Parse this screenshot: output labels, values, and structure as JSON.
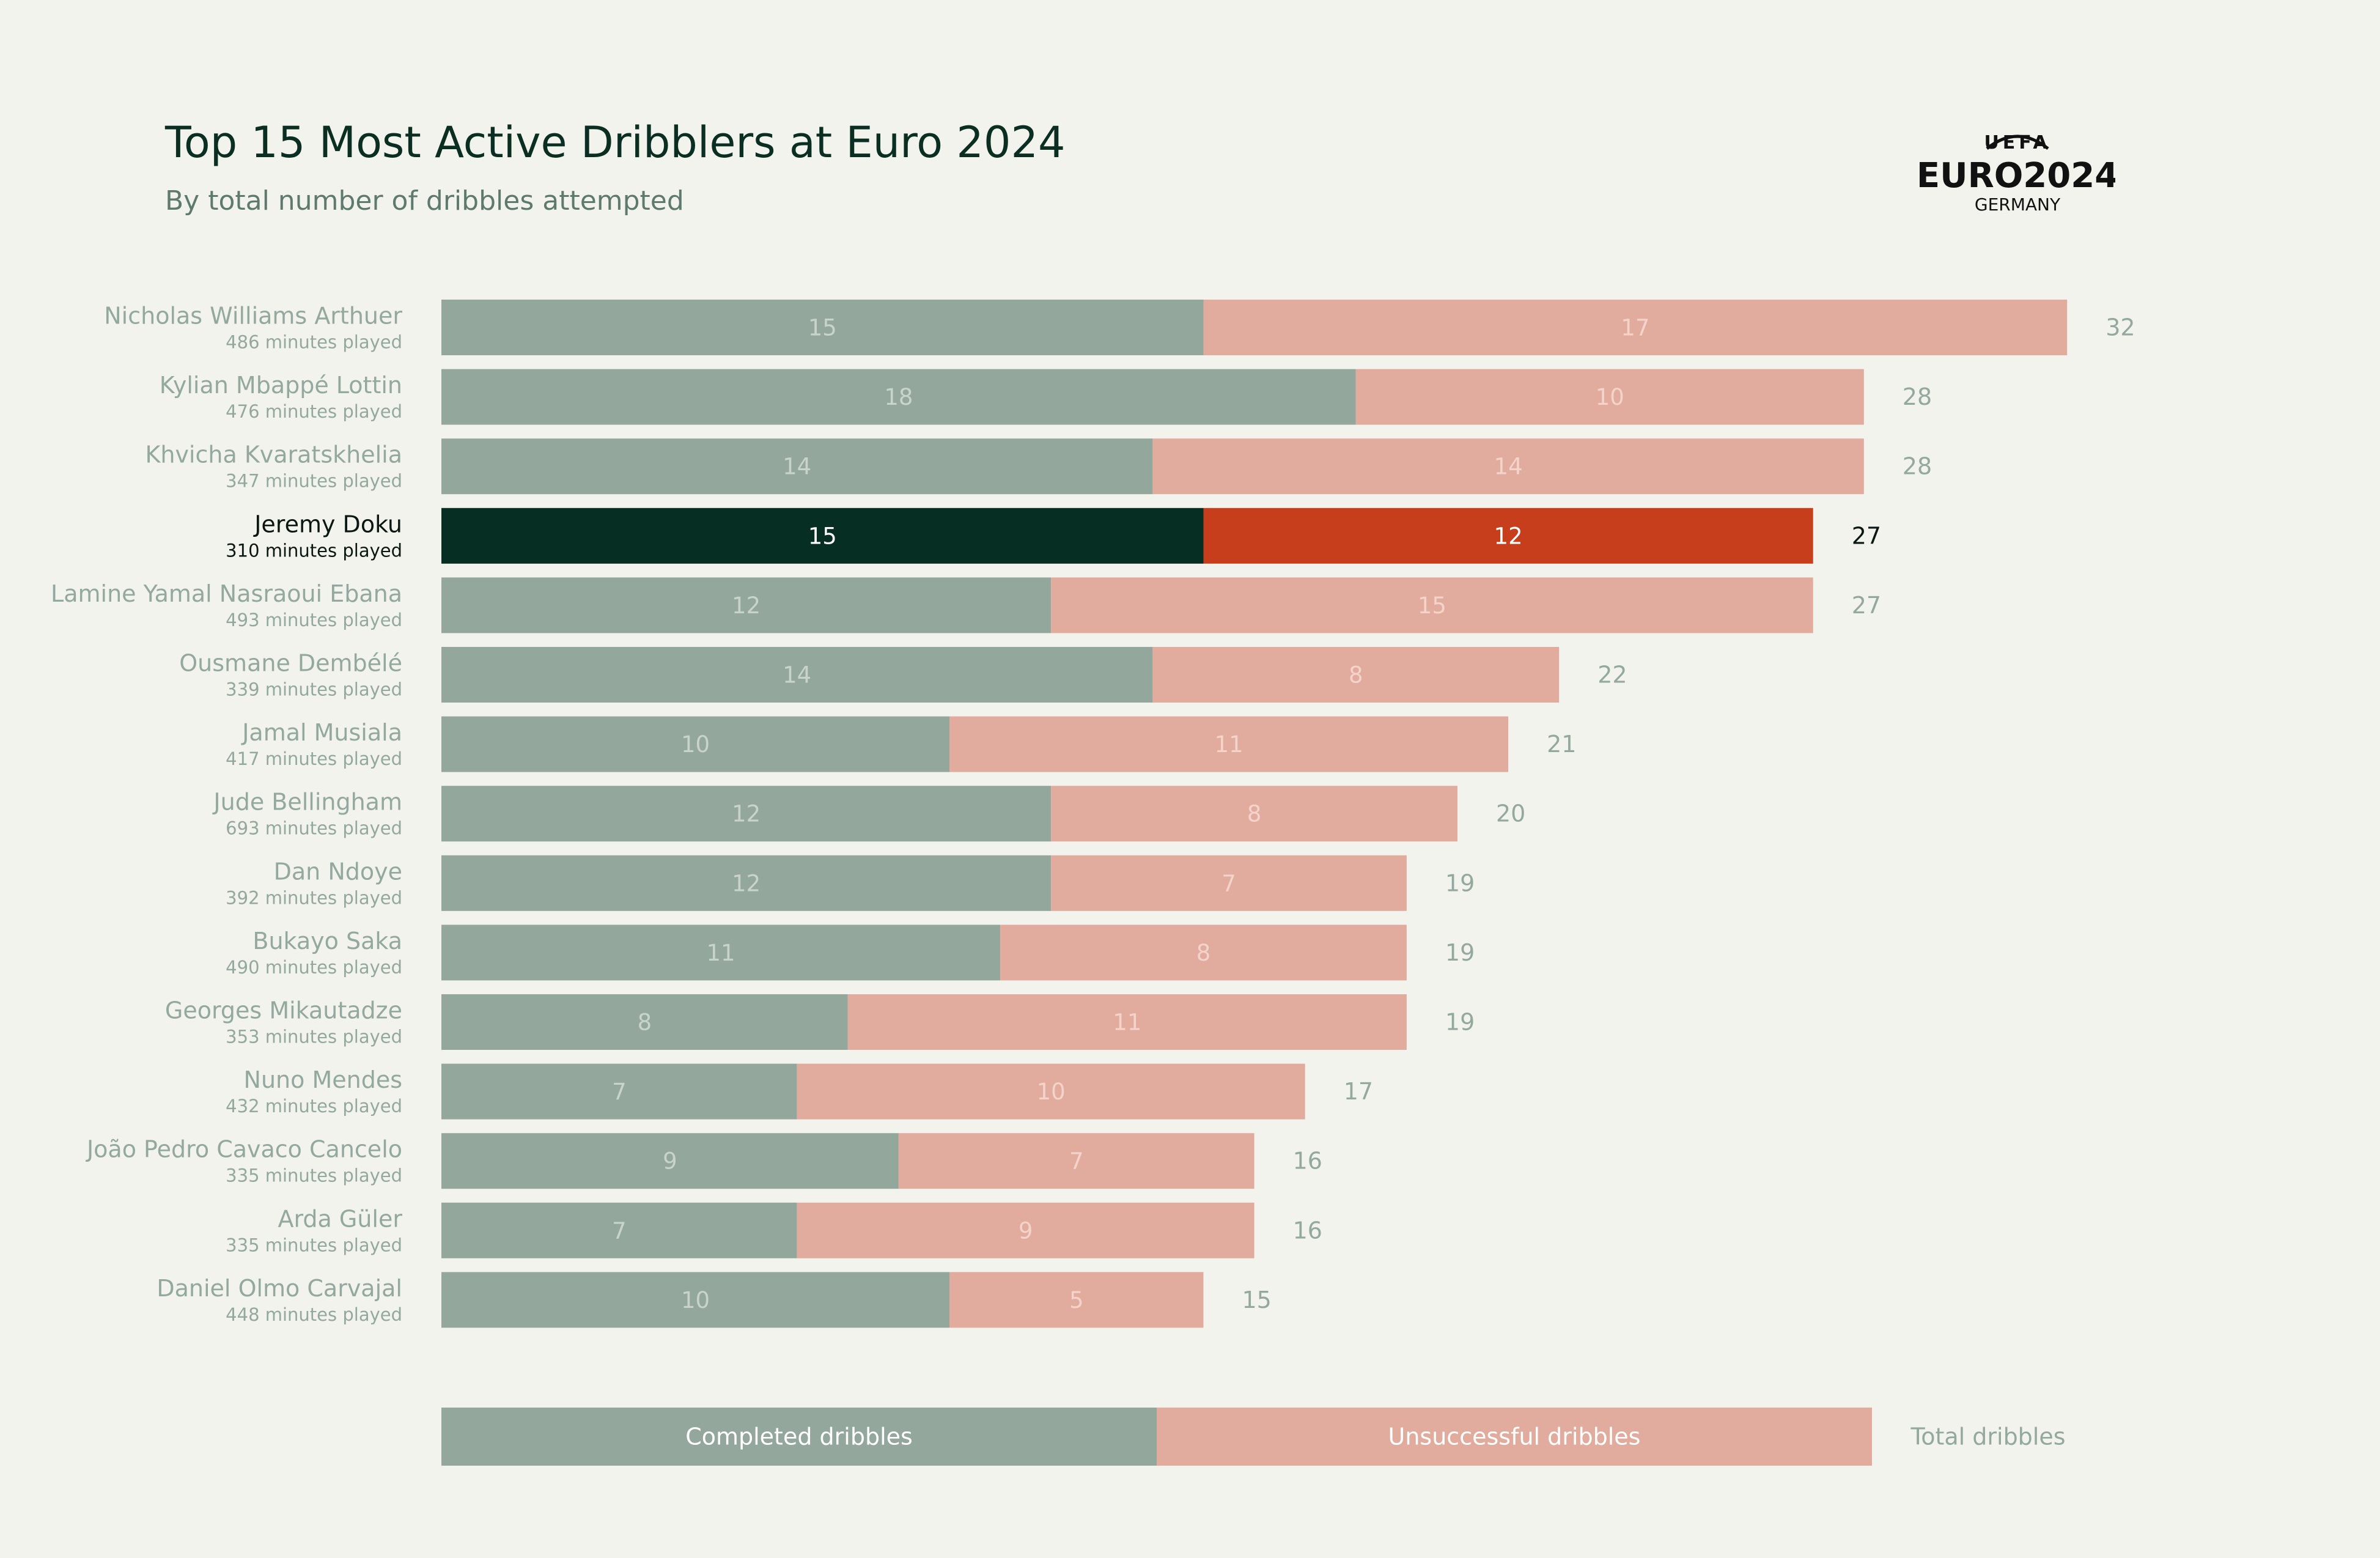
{
  "title": "Top 15 Most Active Dribblers at Euro 2024",
  "subtitle": "By total number of dribbles attempted",
  "logo": {
    "line1": "UEFA",
    "line2": "EURO2024",
    "line3": "GERMANY"
  },
  "colors": {
    "background": "#F2F3ED",
    "completed": "#94A79D",
    "unsuccessful": "#E1AC9E",
    "completed_highlight": "#072E22",
    "unsuccessful_highlight": "#C73E1D",
    "muted_text": "#93A89E",
    "dark_text": "#0B2E22"
  },
  "chart_data": {
    "type": "bar",
    "orientation": "horizontal",
    "stacked": true,
    "highlighted_player": "Jeremy Doku",
    "players": [
      {
        "name": "Nicholas Williams Arthuer",
        "minutes": "486 minutes played",
        "completed": 15,
        "unsuccessful": 17,
        "total": 32
      },
      {
        "name": "Kylian Mbappé Lottin",
        "minutes": "476 minutes played",
        "completed": 18,
        "unsuccessful": 10,
        "total": 28
      },
      {
        "name": "Khvicha Kvaratskhelia",
        "minutes": "347 minutes played",
        "completed": 14,
        "unsuccessful": 14,
        "total": 28
      },
      {
        "name": "Jeremy Doku",
        "minutes": "310 minutes played",
        "completed": 15,
        "unsuccessful": 12,
        "total": 27
      },
      {
        "name": "Lamine Yamal Nasraoui Ebana",
        "minutes": "493 minutes played",
        "completed": 12,
        "unsuccessful": 15,
        "total": 27
      },
      {
        "name": "Ousmane Dembélé",
        "minutes": "339 minutes played",
        "completed": 14,
        "unsuccessful": 8,
        "total": 22
      },
      {
        "name": "Jamal Musiala",
        "minutes": "417 minutes played",
        "completed": 10,
        "unsuccessful": 11,
        "total": 21
      },
      {
        "name": "Jude Bellingham",
        "minutes": "693 minutes played",
        "completed": 12,
        "unsuccessful": 8,
        "total": 20
      },
      {
        "name": "Dan Ndoye",
        "minutes": "392 minutes played",
        "completed": 12,
        "unsuccessful": 7,
        "total": 19
      },
      {
        "name": "Bukayo Saka",
        "minutes": "490 minutes played",
        "completed": 11,
        "unsuccessful": 8,
        "total": 19
      },
      {
        "name": "Georges Mikautadze",
        "minutes": "353 minutes played",
        "completed": 8,
        "unsuccessful": 11,
        "total": 19
      },
      {
        "name": "Nuno Mendes",
        "minutes": "432 minutes played",
        "completed": 7,
        "unsuccessful": 10,
        "total": 17
      },
      {
        "name": "João Pedro Cavaco Cancelo",
        "minutes": "335 minutes played",
        "completed": 9,
        "unsuccessful": 7,
        "total": 16
      },
      {
        "name": "Arda Güler",
        "minutes": "335 minutes played",
        "completed": 7,
        "unsuccessful": 9,
        "total": 16
      },
      {
        "name": "Daniel Olmo Carvajal",
        "minutes": "448 minutes played",
        "completed": 10,
        "unsuccessful": 5,
        "total": 15
      }
    ],
    "legend": {
      "completed": "Completed dribbles",
      "unsuccessful": "Unsuccessful dribbles",
      "total": "Total dribbles"
    }
  }
}
